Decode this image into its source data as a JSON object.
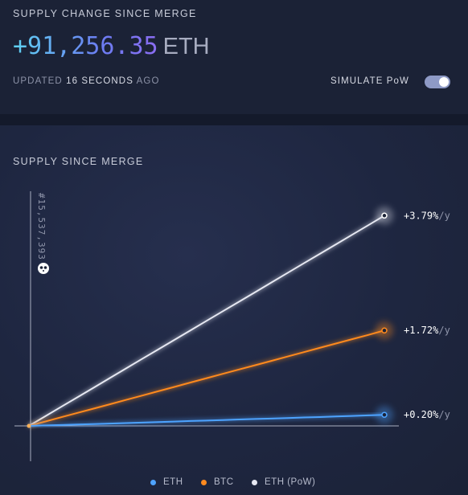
{
  "header": {
    "title": "SUPPLY CHANGE SINCE MERGE",
    "value": "+91,256.35",
    "unit": "ETH",
    "updated_prefix": "UPDATED",
    "updated_time": "16 SECONDS",
    "updated_suffix": "AGO",
    "simulate_label": "SIMULATE PoW",
    "simulate_on": true
  },
  "chart_data": {
    "type": "line",
    "title": "SUPPLY SINCE MERGE",
    "marker_label": "#15,537,393",
    "marker_icon": "panda-icon",
    "series": [
      {
        "name": "ETH",
        "color": "#4ea3ff",
        "end_label": "+0.20%",
        "unit_suffix": "/y",
        "values": [
          0,
          0.004,
          0.008,
          0.012,
          0.016,
          0.021,
          0.025,
          0.03,
          0.034,
          0.039,
          0.044,
          0.048,
          0.053,
          0.058,
          0.062,
          0.066,
          0.071,
          0.076,
          0.08,
          0.085,
          0.09,
          0.095,
          0.1
        ]
      },
      {
        "name": "BTC",
        "color": "#ff8a1f",
        "end_label": "+1.72%",
        "unit_suffix": "/y",
        "values": [
          0,
          0.039,
          0.078,
          0.117,
          0.156,
          0.195,
          0.234,
          0.273,
          0.312,
          0.351,
          0.391,
          0.43,
          0.469,
          0.508,
          0.547,
          0.586,
          0.625,
          0.664,
          0.703,
          0.742,
          0.781,
          0.82,
          0.86
        ]
      },
      {
        "name": "ETH (PoW)",
        "color": "#e6e8f2",
        "end_label": "+3.79%",
        "unit_suffix": "/y",
        "values": [
          0,
          0.086,
          0.172,
          0.258,
          0.344,
          0.431,
          0.517,
          0.603,
          0.689,
          0.775,
          0.861,
          0.947,
          1.033,
          1.119,
          1.205,
          1.292,
          1.378,
          1.464,
          1.55,
          1.636,
          1.722,
          1.808,
          1.895
        ]
      }
    ],
    "ylim": [
      0,
      2.1
    ],
    "grid": false,
    "legend_placement": "bottom"
  }
}
